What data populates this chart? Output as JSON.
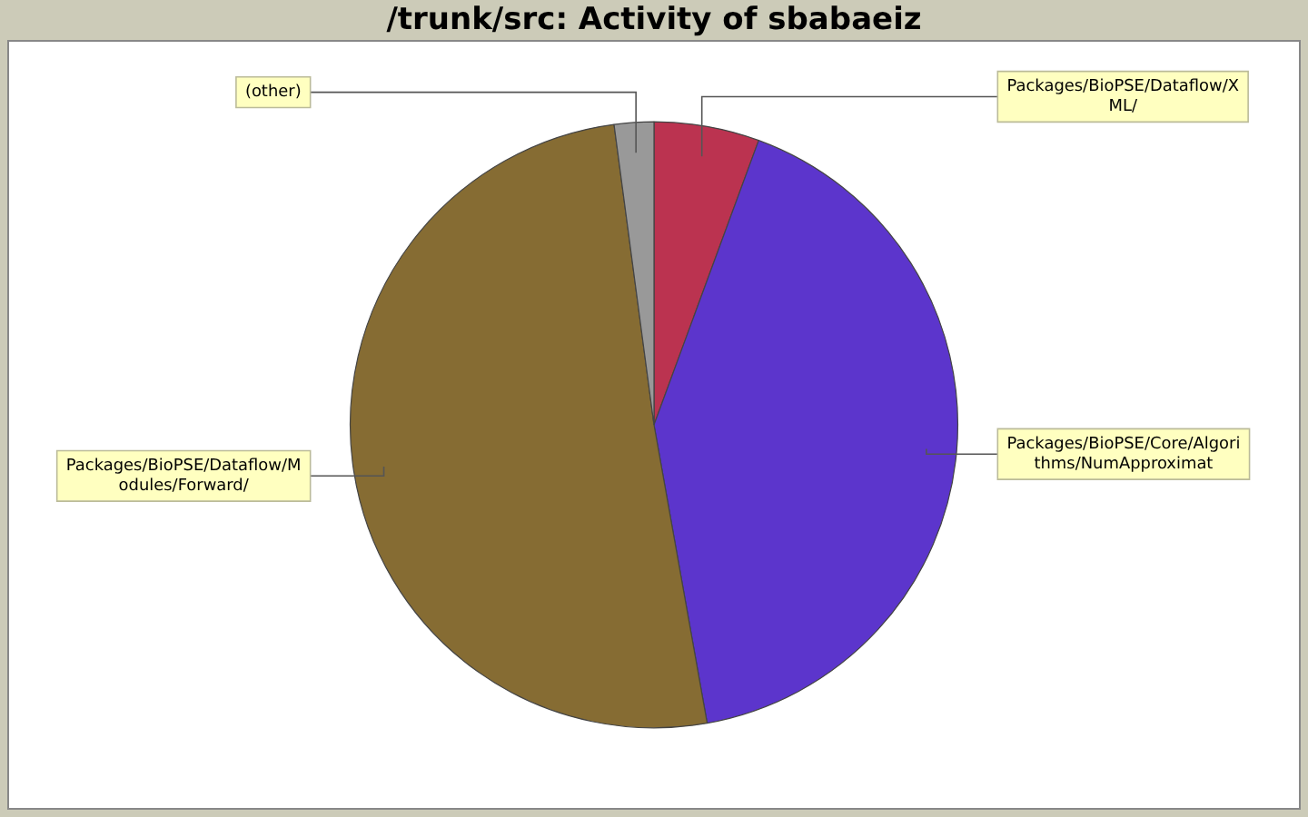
{
  "chart_data": {
    "type": "pie",
    "title": "/trunk/src: Activity of sbabaeiz",
    "categories": [
      "Packages/BioPSE/Dataflow/XML/",
      "Packages/BioPSE/Core/Algorithms/NumApproximat",
      "Packages/BioPSE/Dataflow/Modules/Forward/",
      "(other)"
    ],
    "values": [
      5.6,
      41.6,
      50.7,
      2.1
    ],
    "colors": [
      "#bb3350",
      "#5c35cc",
      "#866c33",
      "#999999"
    ],
    "legend": false
  }
}
